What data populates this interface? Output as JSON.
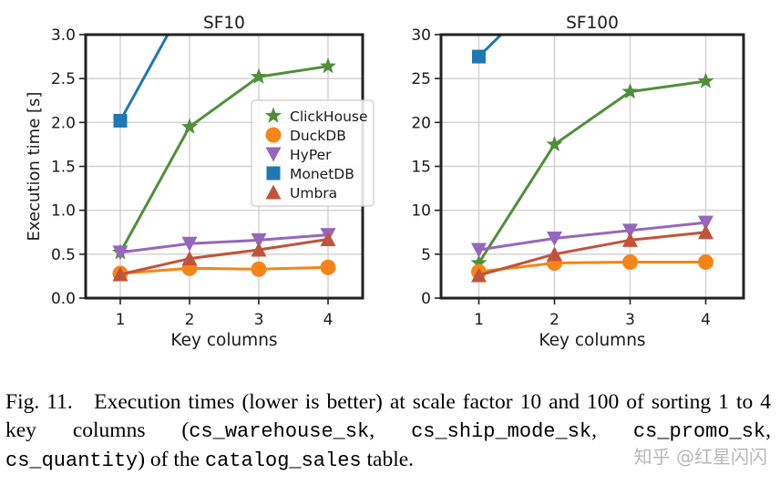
{
  "chart_data": [
    {
      "type": "line",
      "title": "SF10",
      "xlabel": "Key columns",
      "ylabel": "Execution time [s]",
      "x": [
        1,
        2,
        3,
        4
      ],
      "xticks": [
        "1",
        "2",
        "3",
        "4"
      ],
      "yticks": [
        "0.0",
        "0.5",
        "1.0",
        "1.5",
        "2.0",
        "2.5",
        "3.0"
      ],
      "ylim": [
        0,
        3
      ],
      "grid": true,
      "legend_position": "center-right",
      "series": [
        {
          "name": "ClickHouse",
          "values": [
            0.52,
            1.95,
            2.52,
            2.64
          ]
        },
        {
          "name": "DuckDB",
          "values": [
            0.28,
            0.34,
            0.33,
            0.35
          ]
        },
        {
          "name": "HyPer",
          "values": [
            0.52,
            0.62,
            0.66,
            0.72
          ]
        },
        {
          "name": "MonetDB",
          "values": [
            2.02,
            3.45,
            null,
            null
          ]
        },
        {
          "name": "Umbra",
          "values": [
            0.27,
            0.45,
            0.55,
            0.67
          ]
        }
      ]
    },
    {
      "type": "line",
      "title": "SF100",
      "xlabel": "Key columns",
      "x": [
        1,
        2,
        3,
        4
      ],
      "xticks": [
        "1",
        "2",
        "3",
        "4"
      ],
      "yticks": [
        "0",
        "5",
        "10",
        "15",
        "20",
        "25",
        "30"
      ],
      "ylim": [
        0,
        30
      ],
      "grid": true,
      "series": [
        {
          "name": "ClickHouse",
          "values": [
            4.0,
            17.5,
            23.5,
            24.7
          ]
        },
        {
          "name": "DuckDB",
          "values": [
            3.0,
            4.0,
            4.1,
            4.1
          ]
        },
        {
          "name": "HyPer",
          "values": [
            5.5,
            6.8,
            7.7,
            8.6
          ]
        },
        {
          "name": "MonetDB",
          "values": [
            27.5,
            36.0,
            null,
            null
          ]
        },
        {
          "name": "Umbra",
          "values": [
            2.6,
            5.0,
            6.6,
            7.5
          ]
        }
      ]
    }
  ],
  "styles": {
    "ClickHouse": {
      "color": "#4f8f3a",
      "marker": "star"
    },
    "DuckDB": {
      "color": "#f58518",
      "marker": "circle"
    },
    "HyPer": {
      "color": "#9467bd",
      "marker": "triangle-down"
    },
    "MonetDB": {
      "color": "#1f77b4",
      "marker": "square"
    },
    "Umbra": {
      "color": "#c0543a",
      "marker": "triangle-up"
    }
  },
  "caption": {
    "part1": "Fig. 11. Execution times (lower is better) at scale factor 10 and 100 of sorting 1 to 4 key columns (",
    "code1": "cs_warehouse_sk",
    "sep1": ", ",
    "code2": "cs_ship_mode_sk",
    "sep2": ", ",
    "code3": "cs_promo_sk",
    "sep3": ", ",
    "code4": "cs_quantity",
    "part2": ") of the ",
    "code5": "catalog_sales",
    "part3": " table."
  },
  "watermark": "知乎 @红星闪闪"
}
